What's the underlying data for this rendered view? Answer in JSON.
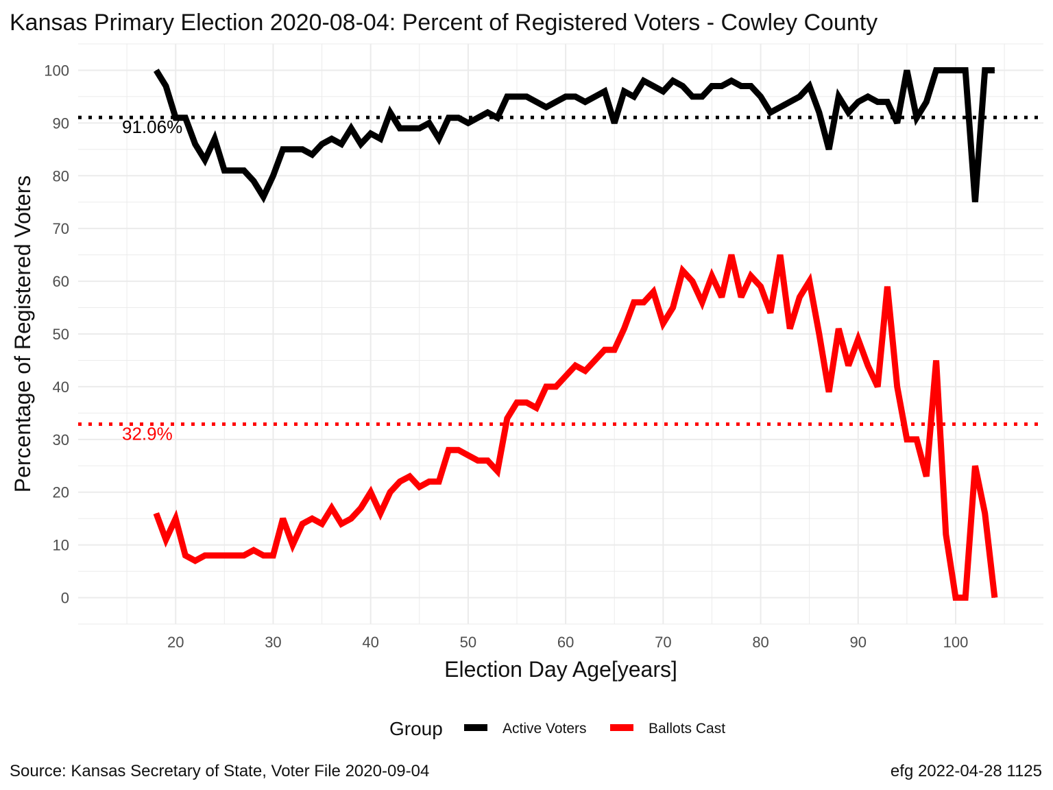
{
  "title": "Kansas Primary Election 2020-08-04:  Percent of Registered Voters - Cowley County",
  "caption_left": "Source:  Kansas Secretary of State, Voter File  2020-09-04",
  "caption_right": "efg 2022-04-28 1125",
  "legend": {
    "title": "Group",
    "position": "bottom"
  },
  "colors": {
    "active": "#000000",
    "ballots": "#ff0000",
    "grid": "#ebebeb",
    "tick": "#4d4d4d"
  },
  "chart_data": {
    "type": "line",
    "xlabel": "Election Day Age[years]",
    "ylabel": "Percentage of Registered Voters",
    "xlim": [
      10,
      109
    ],
    "ylim": [
      -5,
      105
    ],
    "xticks": [
      20,
      30,
      40,
      50,
      60,
      70,
      80,
      90,
      100
    ],
    "yticks": [
      0,
      10,
      20,
      30,
      40,
      50,
      60,
      70,
      80,
      90,
      100
    ],
    "grid": true,
    "series": [
      {
        "name": "Active Voters",
        "color": "#000000",
        "x": [
          18,
          19,
          20,
          21,
          22,
          23,
          24,
          25,
          26,
          27,
          28,
          29,
          30,
          31,
          32,
          33,
          34,
          35,
          36,
          37,
          38,
          39,
          40,
          41,
          42,
          43,
          44,
          45,
          46,
          47,
          48,
          49,
          50,
          51,
          52,
          53,
          54,
          55,
          56,
          57,
          58,
          59,
          60,
          61,
          62,
          63,
          64,
          65,
          66,
          67,
          68,
          69,
          70,
          71,
          72,
          73,
          74,
          75,
          76,
          77,
          78,
          79,
          80,
          81,
          82,
          83,
          84,
          85,
          86,
          87,
          88,
          89,
          90,
          91,
          92,
          93,
          94,
          95,
          96,
          97,
          98,
          99,
          100,
          101,
          102,
          103,
          104
        ],
        "y": [
          100,
          97,
          91,
          91,
          86,
          83,
          87,
          81,
          81,
          81,
          79,
          76,
          80,
          85,
          85,
          85,
          84,
          86,
          87,
          86,
          89,
          86,
          88,
          87,
          92,
          89,
          89,
          89,
          90,
          87,
          91,
          91,
          90,
          91,
          92,
          91,
          95,
          95,
          95,
          94,
          93,
          94,
          95,
          95,
          94,
          95,
          96,
          90,
          96,
          95,
          98,
          97,
          96,
          98,
          97,
          95,
          95,
          97,
          97,
          98,
          97,
          97,
          95,
          92,
          93,
          94,
          95,
          97,
          92,
          85,
          95,
          92,
          94,
          95,
          94,
          94,
          90,
          100,
          91,
          94,
          100,
          100,
          100,
          100,
          75,
          100,
          100
        ]
      },
      {
        "name": "Ballots Cast",
        "color": "#ff0000",
        "x": [
          18,
          19,
          20,
          21,
          22,
          23,
          24,
          25,
          26,
          27,
          28,
          29,
          30,
          31,
          32,
          33,
          34,
          35,
          36,
          37,
          38,
          39,
          40,
          41,
          42,
          43,
          44,
          45,
          46,
          47,
          48,
          49,
          50,
          51,
          52,
          53,
          54,
          55,
          56,
          57,
          58,
          59,
          60,
          61,
          62,
          63,
          64,
          65,
          66,
          67,
          68,
          69,
          70,
          71,
          72,
          73,
          74,
          75,
          76,
          77,
          78,
          79,
          80,
          81,
          82,
          83,
          84,
          85,
          86,
          87,
          88,
          89,
          90,
          91,
          92,
          93,
          94,
          95,
          96,
          97,
          98,
          99,
          100,
          101,
          102,
          103,
          104
        ],
        "y": [
          16,
          11,
          15,
          8,
          7,
          8,
          8,
          8,
          8,
          8,
          9,
          8,
          8,
          15,
          10,
          14,
          15,
          14,
          17,
          14,
          15,
          17,
          20,
          16,
          20,
          22,
          23,
          21,
          22,
          22,
          28,
          28,
          27,
          26,
          26,
          24,
          34,
          37,
          37,
          36,
          40,
          40,
          42,
          44,
          43,
          45,
          47,
          47,
          51,
          56,
          56,
          58,
          52,
          55,
          62,
          60,
          56,
          61,
          57,
          65,
          57,
          61,
          59,
          54,
          65,
          51,
          57,
          60,
          50,
          39,
          51,
          44,
          49,
          44,
          40,
          59,
          40,
          30,
          30,
          23,
          45,
          12,
          0,
          0,
          25,
          16,
          0
        ]
      }
    ],
    "reference_lines": [
      {
        "series": "Active Voters",
        "y": 91.06,
        "label": "91.06%",
        "color": "#000000"
      },
      {
        "series": "Ballots Cast",
        "y": 32.9,
        "label": "32.9%",
        "color": "#ff0000"
      }
    ]
  }
}
